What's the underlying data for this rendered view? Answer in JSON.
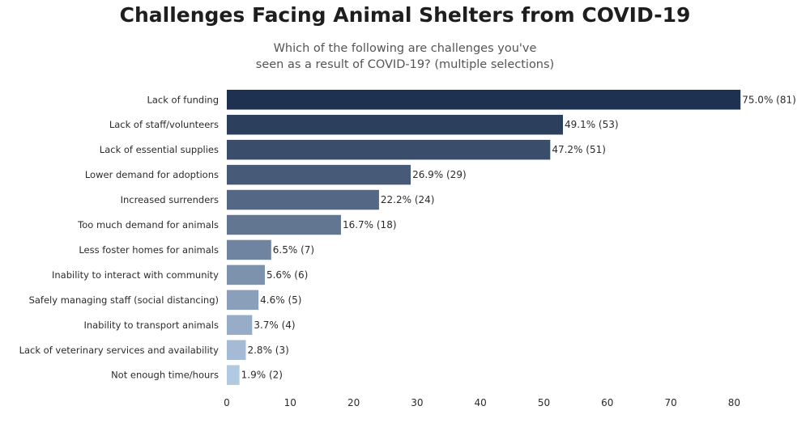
{
  "chart_data": {
    "type": "bar",
    "orientation": "horizontal",
    "title": "Challenges Facing Animal Shelters from COVID-19",
    "subtitle_lines": [
      "Which of the following are challenges you've",
      "seen as a result of COVID-19? (multiple selections)"
    ],
    "categories": [
      "Lack of funding",
      "Lack of staff/volunteers",
      "Lack of essential supplies",
      "Lower demand for adoptions",
      "Increased surrenders",
      "Too much demand for animals",
      "Less foster homes for animals",
      "Inability to interact with community",
      "Safely managing staff (social distancing)",
      "Inability to transport animals",
      "Lack of veterinary services and availability",
      "Not enough time/hours"
    ],
    "values": [
      81,
      53,
      51,
      29,
      24,
      18,
      7,
      6,
      5,
      4,
      3,
      2
    ],
    "data_labels": [
      "75.0% (81)",
      "49.1% (53)",
      "47.2% (51)",
      "26.9% (29)",
      "22.2% (24)",
      "16.7% (18)",
      "6.5% (7)",
      "5.6% (6)",
      "4.6% (5)",
      "3.7% (4)",
      "2.8% (3)",
      "1.9% (2)"
    ],
    "xticks": [
      0,
      10,
      20,
      30,
      40,
      50,
      60,
      70,
      80
    ],
    "xlim": [
      0,
      81
    ],
    "xlabel": "",
    "ylabel": "",
    "grid": false,
    "legend": "none",
    "color_dark": "#1f3150",
    "color_light": "#b2c9e2"
  }
}
